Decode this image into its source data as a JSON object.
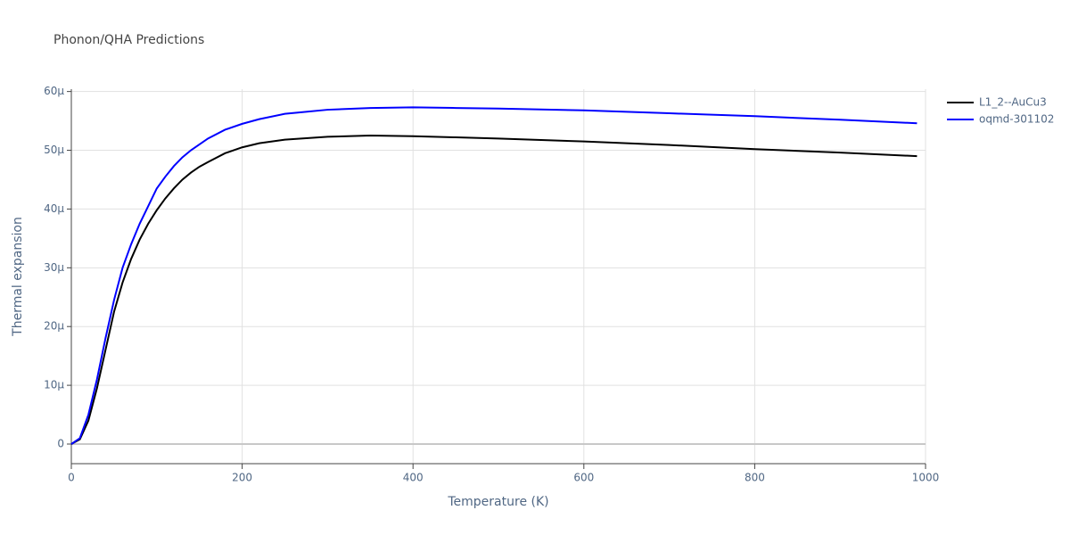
{
  "chart_data": {
    "type": "line",
    "title": "Phonon/QHA Predictions",
    "x_label": "Temperature (K)",
    "y_label": "Thermal expansion",
    "x": [
      0,
      10,
      20,
      30,
      40,
      50,
      60,
      70,
      80,
      90,
      100,
      110,
      120,
      130,
      140,
      150,
      160,
      180,
      200,
      220,
      250,
      300,
      350,
      400,
      450,
      500,
      600,
      700,
      800,
      900,
      990
    ],
    "series": [
      {
        "name": "L1_2--AuCu3",
        "color": "#000000",
        "values": [
          0,
          8e-07,
          4e-06,
          9.5e-06,
          1.6e-05,
          2.25e-05,
          2.75e-05,
          3.15e-05,
          3.48e-05,
          3.75e-05,
          3.98e-05,
          4.18e-05,
          4.35e-05,
          4.5e-05,
          4.62e-05,
          4.72e-05,
          4.8e-05,
          4.95e-05,
          5.05e-05,
          5.12e-05,
          5.18e-05,
          5.23e-05,
          5.25e-05,
          5.24e-05,
          5.22e-05,
          5.2e-05,
          5.15e-05,
          5.09e-05,
          5.02e-05,
          4.96e-05,
          4.9e-05
        ]
      },
      {
        "name": "oqmd-301102",
        "color": "#0000ff",
        "values": [
          0,
          1e-06,
          5e-06,
          1.1e-05,
          1.8e-05,
          2.45e-05,
          3e-05,
          3.4e-05,
          3.75e-05,
          4.05e-05,
          4.35e-05,
          4.55e-05,
          4.73e-05,
          4.88e-05,
          5e-05,
          5.1e-05,
          5.2e-05,
          5.35e-05,
          5.45e-05,
          5.53e-05,
          5.62e-05,
          5.69e-05,
          5.72e-05,
          5.73e-05,
          5.72e-05,
          5.71e-05,
          5.68e-05,
          5.63e-05,
          5.58e-05,
          5.52e-05,
          5.46e-05
        ]
      }
    ],
    "xlim": [
      0,
      1000
    ],
    "xticks": [
      0,
      200,
      400,
      600,
      800,
      1000
    ],
    "ylim": [
      -3.34e-06,
      6.04e-05
    ],
    "yticks": [
      0,
      {
        "value": 1e-05,
        "label": "10μ"
      },
      {
        "value": 2e-05,
        "label": "20μ"
      },
      {
        "value": 3e-05,
        "label": "30μ"
      },
      {
        "value": 4e-05,
        "label": "40μ"
      },
      {
        "value": 5e-05,
        "label": "50μ"
      },
      {
        "value": 6e-05,
        "label": "60μ"
      }
    ],
    "grid": true,
    "legend": "right"
  }
}
